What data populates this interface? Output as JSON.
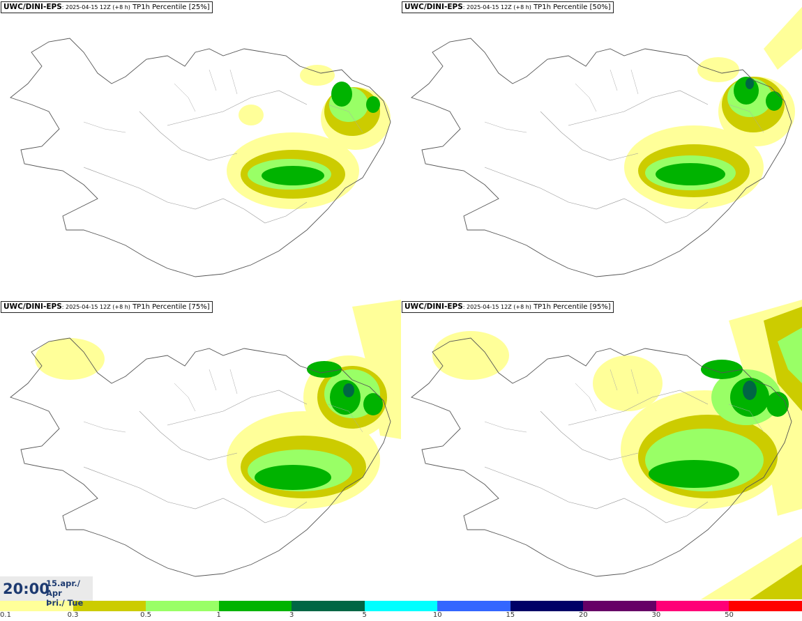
{
  "panels": [
    {
      "model": "UWC/DINI-EPS",
      "run": ": 2025-04-15 12Z (+8 h)",
      "param": " TP1h Percentile [25%]"
    },
    {
      "model": "UWC/DINI-EPS",
      "run": ": 2025-04-15 12Z (+8 h)",
      "param": " TP1h Percentile [50%]"
    },
    {
      "model": "UWC/DINI-EPS",
      "run": ": 2025-04-15 12Z (+8 h)",
      "param": " TP1h Percentile [75%]"
    },
    {
      "model": "UWC/DINI-EPS",
      "run": ": 2025-04-15 12Z (+8 h)",
      "param": " TP1h Percentile [95%]"
    }
  ],
  "valid_time": {
    "time": "20:00",
    "date_line1": "15.apr./ Apr",
    "date_line2": "Þri./ Tue"
  },
  "legend": {
    "colors": [
      "#ffff99",
      "#cccc00",
      "#99ff66",
      "#00b300",
      "#006644",
      "#00ffff",
      "#3366ff",
      "#000066",
      "#660066",
      "#ff0077",
      "#ff0000"
    ],
    "labels": [
      "0.1",
      "0.3",
      "0.5",
      "1",
      "3",
      "5",
      "10",
      "15",
      "20",
      "30",
      "50"
    ]
  }
}
